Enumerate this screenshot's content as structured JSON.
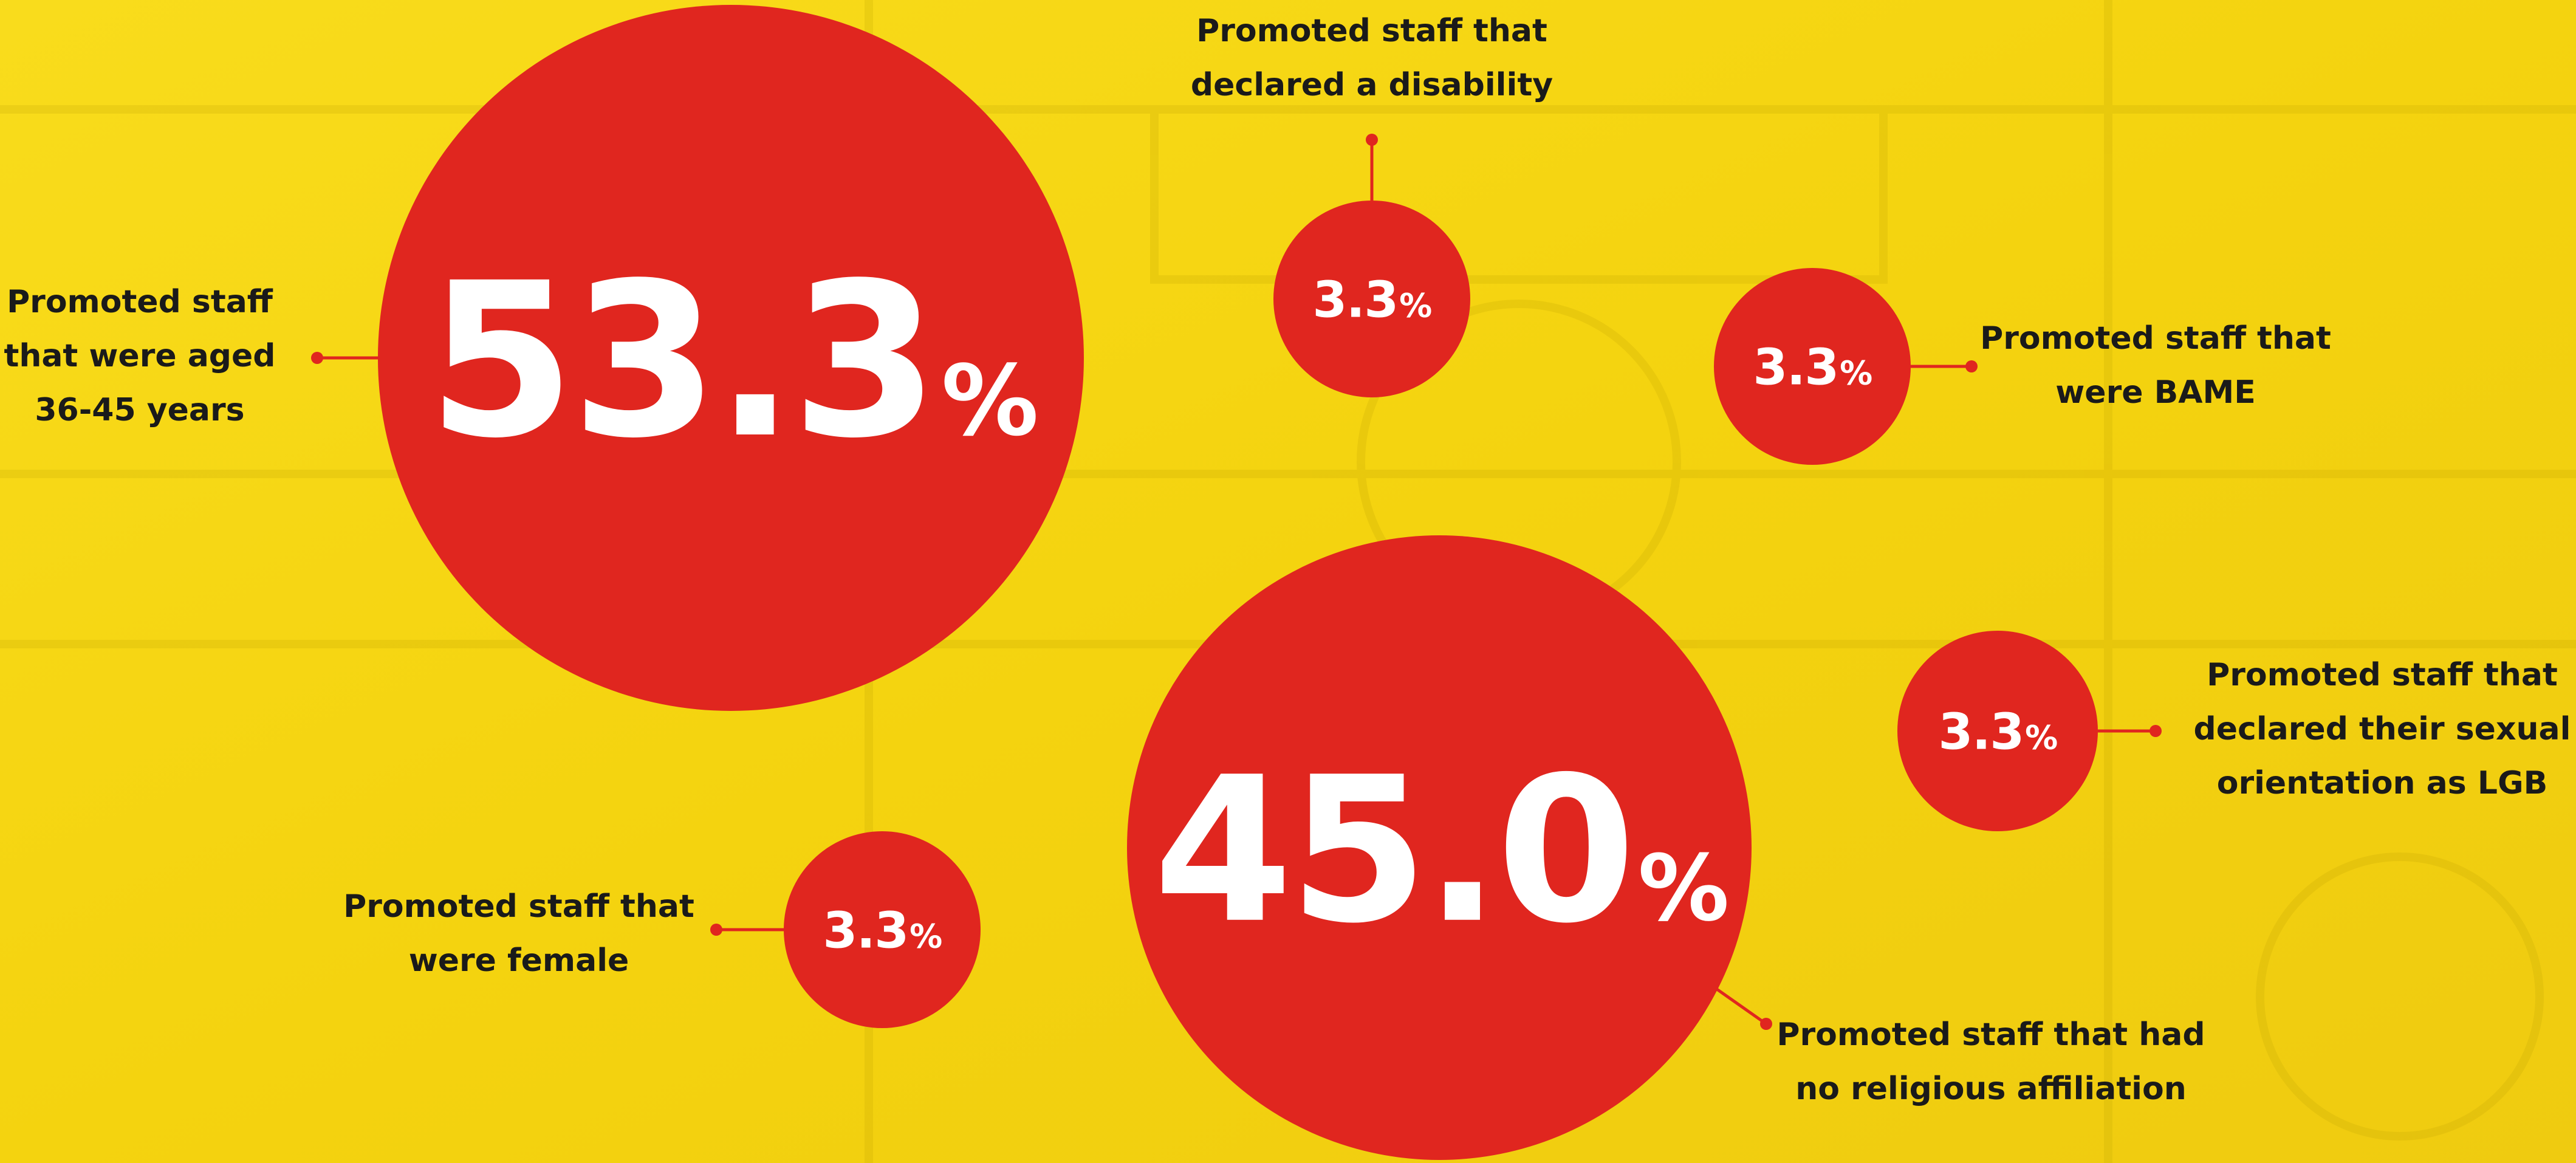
{
  "bubbles": [
    {
      "value": "53.3",
      "unit": "%",
      "label": [
        "Promoted staff",
        "that were aged",
        "36-45 years"
      ]
    },
    {
      "value": "3.3",
      "unit": "%",
      "label": [
        "Promoted staff that",
        "declared a disability"
      ]
    },
    {
      "value": "3.3",
      "unit": "%",
      "label": [
        "Promoted staff that",
        "were BAME"
      ]
    },
    {
      "value": "3.3",
      "unit": "%",
      "label": [
        "Promoted staff that",
        "declared their sexual",
        "orientation as LGB"
      ]
    },
    {
      "value": "3.3",
      "unit": "%",
      "label": [
        "Promoted staff that",
        "were female"
      ]
    },
    {
      "value": "45.0",
      "unit": "%",
      "label": [
        "Promoted staff that had",
        "no religious affiliation"
      ]
    }
  ]
}
